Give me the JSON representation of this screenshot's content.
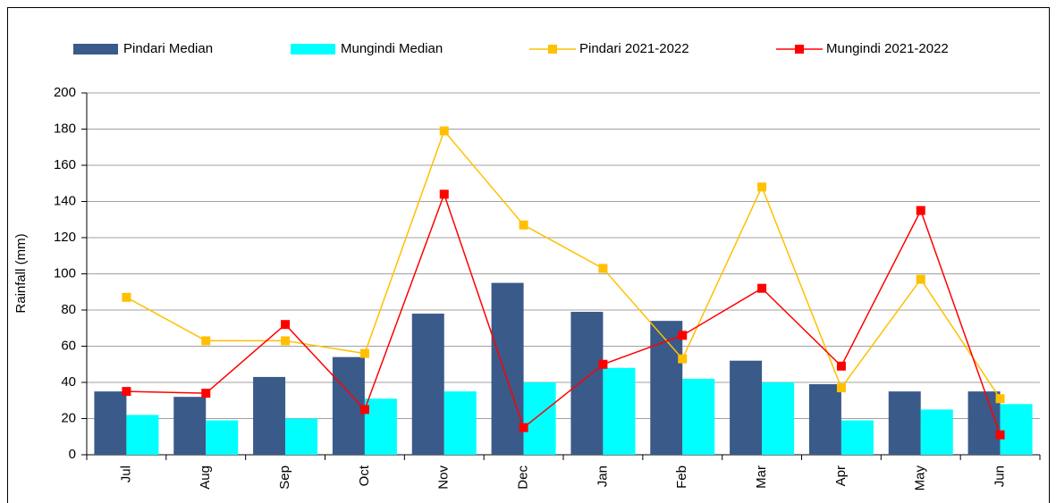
{
  "chart_data": {
    "type": "bar",
    "y_label": "Rainfall (mm)",
    "categories": [
      "Jul",
      "Aug",
      "Sep",
      "Oct",
      "Nov",
      "Dec",
      "Jan",
      "Feb",
      "Mar",
      "Apr",
      "May",
      "Jun"
    ],
    "series": [
      {
        "name": "Pindari Median",
        "type": "bar",
        "color": "#3a5a8a",
        "values": [
          35,
          32,
          43,
          54,
          78,
          95,
          79,
          74,
          52,
          39,
          35,
          35
        ]
      },
      {
        "name": "Mungindi Median",
        "type": "bar",
        "color": "#00ffff",
        "values": [
          22,
          19,
          20,
          31,
          35,
          40,
          48,
          42,
          40,
          19,
          25,
          28
        ]
      },
      {
        "name": "Pindari 2021-2022",
        "type": "line",
        "color": "#ffc000",
        "values": [
          87,
          63,
          63,
          56,
          179,
          127,
          103,
          53,
          148,
          37,
          97,
          31
        ]
      },
      {
        "name": "Mungindi 2021-2022",
        "type": "line",
        "color": "#ff0000",
        "values": [
          35,
          34,
          72,
          25,
          144,
          15,
          50,
          66,
          92,
          49,
          135,
          11
        ]
      }
    ],
    "ylim": [
      0,
      200
    ],
    "yticks": [
      0,
      20,
      40,
      60,
      80,
      100,
      120,
      140,
      160,
      180,
      200
    ],
    "grid": true,
    "legend": "top"
  }
}
